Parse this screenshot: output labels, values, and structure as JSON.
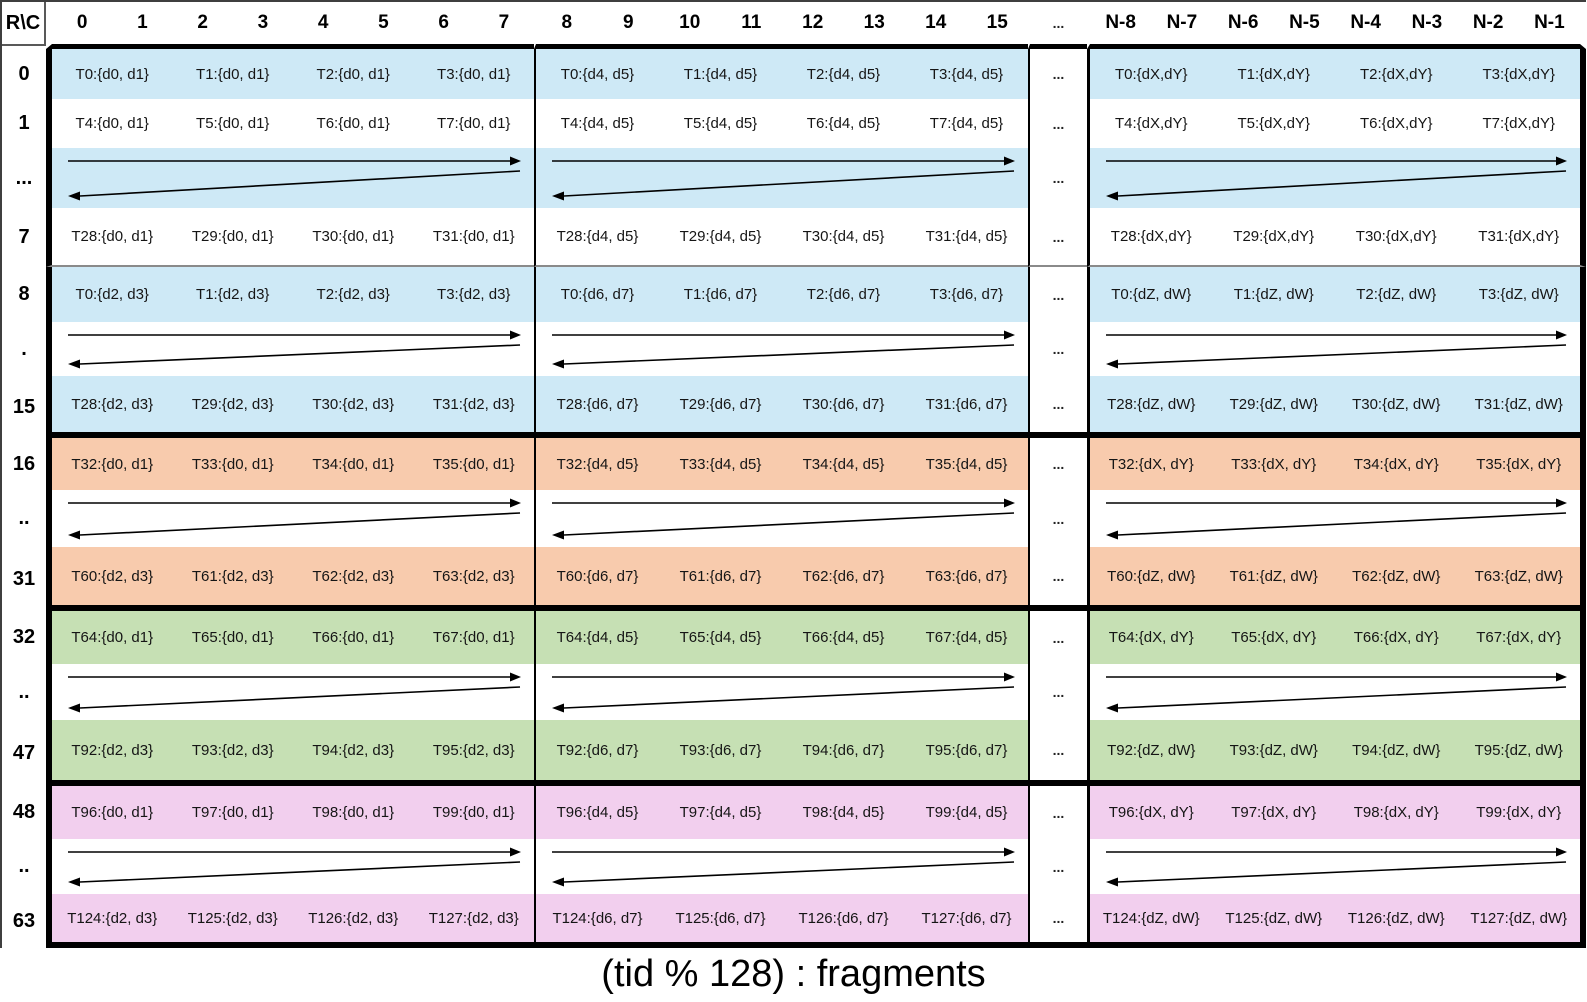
{
  "caption": "(tid % 128) : fragments",
  "colors": {
    "band_blue": "#cee9f6",
    "band_orange": "#f8cbad",
    "band_green": "#c6e0b4",
    "band_pink": "#f2cfee",
    "row_white": "#ffffff",
    "grid_black": "#000000",
    "thin_line_gray": "#8a8a8a"
  },
  "table": {
    "corner_label": "R\\C",
    "header": {
      "block1": [
        "0",
        "1",
        "2",
        "3",
        "4",
        "5",
        "6",
        "7"
      ],
      "block2": [
        "8",
        "9",
        "10",
        "11",
        "12",
        "13",
        "14",
        "15"
      ],
      "dots_label": "...",
      "block3": [
        "N-8",
        "N-7",
        "N-6",
        "N-5",
        "N-4",
        "N-3",
        "N-2",
        "N-1"
      ]
    },
    "rows": [
      {
        "label": "0",
        "bg": "blue",
        "type": "cells",
        "dots": "...",
        "blocks": [
          [
            "T0:{d0, d1}",
            "T1:{d0, d1}",
            "T2:{d0, d1}",
            "T3:{d0, d1}"
          ],
          [
            "T0:{d4, d5}",
            "T1:{d4, d5}",
            "T2:{d4, d5}",
            "T3:{d4, d5}"
          ],
          [
            "T0:{dX,dY}",
            "T1:{dX,dY}",
            "T2:{dX,dY}",
            "T3:{dX,dY}"
          ]
        ]
      },
      {
        "label": "1",
        "bg": "white",
        "type": "cells",
        "dots": "...",
        "blocks": [
          [
            "T4:{d0, d1}",
            "T5:{d0, d1}",
            "T6:{d0, d1}",
            "T7:{d0, d1}"
          ],
          [
            "T4:{d4, d5}",
            "T5:{d4, d5}",
            "T6:{d4, d5}",
            "T7:{d4, d5}"
          ],
          [
            "T4:{dX,dY}",
            "T5:{dX,dY}",
            "T6:{dX,dY}",
            "T7:{dX,dY}"
          ]
        ]
      },
      {
        "label": "...",
        "bg": "blue",
        "type": "arrows",
        "dots": "..."
      },
      {
        "label": "7",
        "bg": "white",
        "type": "cells",
        "dots": "...",
        "border_after": "thin",
        "blocks": [
          [
            "T28:{d0, d1}",
            "T29:{d0, d1}",
            "T30:{d0, d1}",
            "T31:{d0, d1}"
          ],
          [
            "T28:{d4, d5}",
            "T29:{d4, d5}",
            "T30:{d4, d5}",
            "T31:{d4, d5}"
          ],
          [
            "T28:{dX,dY}",
            "T29:{dX,dY}",
            "T30:{dX,dY}",
            "T31:{dX,dY}"
          ]
        ]
      },
      {
        "label": "8",
        "bg": "blue",
        "type": "cells",
        "dots": "...",
        "blocks": [
          [
            "T0:{d2, d3}",
            "T1:{d2, d3}",
            "T2:{d2, d3}",
            "T3:{d2, d3}"
          ],
          [
            "T0:{d6, d7}",
            "T1:{d6, d7}",
            "T2:{d6, d7}",
            "T3:{d6, d7}"
          ],
          [
            "T0:{dZ, dW}",
            "T1:{dZ, dW}",
            "T2:{dZ, dW}",
            "T3:{dZ, dW}"
          ]
        ]
      },
      {
        "label": ".",
        "bg": "white",
        "type": "arrows",
        "dots": "..."
      },
      {
        "label": "15",
        "bg": "blue",
        "type": "cells",
        "dots": "...",
        "border_after": "thick",
        "blocks": [
          [
            "T28:{d2, d3}",
            "T29:{d2, d3}",
            "T30:{d2, d3}",
            "T31:{d2, d3}"
          ],
          [
            "T28:{d6, d7}",
            "T29:{d6, d7}",
            "T30:{d6, d7}",
            "T31:{d6, d7}"
          ],
          [
            "T28:{dZ, dW}",
            "T29:{dZ, dW}",
            "T30:{dZ, dW}",
            "T31:{dZ, dW}"
          ]
        ]
      },
      {
        "label": "16",
        "bg": "orange",
        "type": "cells",
        "dots": "...",
        "blocks": [
          [
            "T32:{d0, d1}",
            "T33:{d0, d1}",
            "T34:{d0, d1}",
            "T35:{d0, d1}"
          ],
          [
            "T32:{d4, d5}",
            "T33:{d4, d5}",
            "T34:{d4, d5}",
            "T35:{d4, d5}"
          ],
          [
            "T32:{dX, dY}",
            "T33:{dX, dY}",
            "T34:{dX, dY}",
            "T35:{dX, dY}"
          ]
        ]
      },
      {
        "label": "..",
        "bg": "white",
        "type": "arrows",
        "dots": "..."
      },
      {
        "label": "31",
        "bg": "orange",
        "type": "cells",
        "dots": "...",
        "border_after": "thick",
        "blocks": [
          [
            "T60:{d2, d3}",
            "T61:{d2, d3}",
            "T62:{d2, d3}",
            "T63:{d2, d3}"
          ],
          [
            "T60:{d6, d7}",
            "T61:{d6, d7}",
            "T62:{d6, d7}",
            "T63:{d6, d7}"
          ],
          [
            "T60:{dZ, dW}",
            "T61:{dZ, dW}",
            "T62:{dZ, dW}",
            "T63:{dZ, dW}"
          ]
        ]
      },
      {
        "label": "32",
        "bg": "green",
        "type": "cells",
        "dots": "...",
        "blocks": [
          [
            "T64:{d0, d1}",
            "T65:{d0, d1}",
            "T66:{d0, d1}",
            "T67:{d0, d1}"
          ],
          [
            "T64:{d4, d5}",
            "T65:{d4, d5}",
            "T66:{d4, d5}",
            "T67:{d4, d5}"
          ],
          [
            "T64:{dX, dY}",
            "T65:{dX, dY}",
            "T66:{dX, dY}",
            "T67:{dX, dY}"
          ]
        ]
      },
      {
        "label": "..",
        "bg": "white",
        "type": "arrows",
        "dots": "..."
      },
      {
        "label": "47",
        "bg": "green",
        "type": "cells",
        "dots": "...",
        "border_after": "thick",
        "blocks": [
          [
            "T92:{d2, d3}",
            "T93:{d2, d3}",
            "T94:{d2, d3}",
            "T95:{d2, d3}"
          ],
          [
            "T92:{d6, d7}",
            "T93:{d6, d7}",
            "T94:{d6, d7}",
            "T95:{d6, d7}"
          ],
          [
            "T92:{dZ, dW}",
            "T93:{dZ, dW}",
            "T94:{dZ, dW}",
            "T95:{dZ, dW}"
          ]
        ]
      },
      {
        "label": "48",
        "bg": "pink",
        "type": "cells",
        "dots": "...",
        "blocks": [
          [
            "T96:{d0, d1}",
            "T97:{d0, d1}",
            "T98:{d0, d1}",
            "T99:{d0, d1}"
          ],
          [
            "T96:{d4, d5}",
            "T97:{d4, d5}",
            "T98:{d4, d5}",
            "T99:{d4, d5}"
          ],
          [
            "T96:{dX, dY}",
            "T97:{dX, dY}",
            "T98:{dX, dY}",
            "T99:{dX, dY}"
          ]
        ]
      },
      {
        "label": "..",
        "bg": "white",
        "type": "arrows",
        "dots": "..."
      },
      {
        "label": "63",
        "bg": "pink",
        "type": "cells",
        "dots": "...",
        "border_after": "thick",
        "blocks": [
          [
            "T124:{d2, d3}",
            "T125:{d2, d3}",
            "T126:{d2, d3}",
            "T127:{d2, d3}"
          ],
          [
            "T124:{d6, d7}",
            "T125:{d6, d7}",
            "T126:{d6, d7}",
            "T127:{d6, d7}"
          ],
          [
            "T124:{dZ, dW}",
            "T125:{dZ, dW}",
            "T126:{dZ, dW}",
            "T127:{dZ, dW}"
          ]
        ]
      }
    ]
  }
}
